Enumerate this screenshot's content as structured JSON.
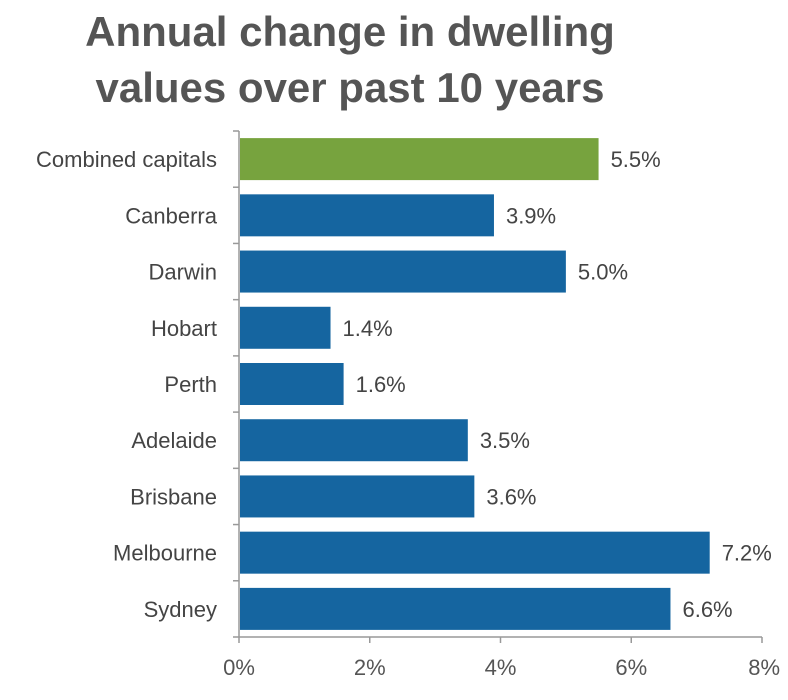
{
  "chart_data": {
    "type": "bar",
    "orientation": "horizontal",
    "title_lines": [
      "Annual change in dwelling",
      "values over past 10 years"
    ],
    "categories": [
      "Combined capitals",
      "Canberra",
      "Darwin",
      "Hobart",
      "Perth",
      "Adelaide",
      "Brisbane",
      "Melbourne",
      "Sydney"
    ],
    "values": [
      5.5,
      3.9,
      5.0,
      1.4,
      1.6,
      3.5,
      3.6,
      7.2,
      6.6
    ],
    "value_labels": [
      "5.5%",
      "3.9%",
      "5.0%",
      "1.4%",
      "1.6%",
      "3.5%",
      "3.6%",
      "7.2%",
      "6.6%"
    ],
    "bar_colors": [
      "#77a33e",
      "#1565a0",
      "#1565a0",
      "#1565a0",
      "#1565a0",
      "#1565a0",
      "#1565a0",
      "#1565a0",
      "#1565a0"
    ],
    "xlim": [
      0,
      8
    ],
    "xticks": [
      0,
      2,
      4,
      6,
      8
    ],
    "xtick_labels": [
      "0%",
      "2%",
      "4%",
      "6%",
      "8%"
    ],
    "xlabel": "",
    "ylabel": "",
    "grid": false,
    "legend": "none"
  }
}
